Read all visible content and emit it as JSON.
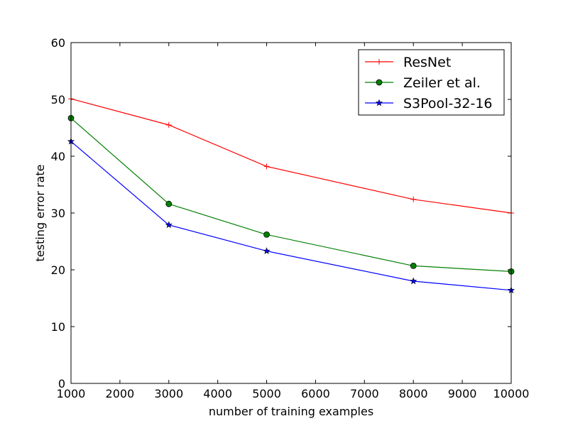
{
  "chart_data": {
    "type": "line",
    "title": "",
    "xlabel": "number of training examples",
    "ylabel": "testing error rate",
    "xlim": [
      1000,
      10000
    ],
    "ylim": [
      0,
      60
    ],
    "xticks": [
      1000,
      2000,
      3000,
      4000,
      5000,
      6000,
      7000,
      8000,
      9000,
      10000
    ],
    "yticks": [
      0,
      10,
      20,
      30,
      40,
      50,
      60
    ],
    "grid": false,
    "legend_position": "top-right",
    "x": [
      1000,
      3000,
      5000,
      8000,
      10000
    ],
    "series": [
      {
        "name": "ResNet",
        "color": "#ff0000",
        "marker": "plus",
        "values": [
          50.1,
          45.5,
          38.2,
          32.4,
          30.0
        ]
      },
      {
        "name": "Zeiler et al.",
        "color": "#008000",
        "marker": "circle",
        "values": [
          46.7,
          31.6,
          26.2,
          20.7,
          19.7
        ]
      },
      {
        "name": "S3Pool-32-16",
        "color": "#0000ff",
        "marker": "star",
        "values": [
          42.6,
          27.9,
          23.3,
          18.0,
          16.4
        ]
      }
    ]
  }
}
